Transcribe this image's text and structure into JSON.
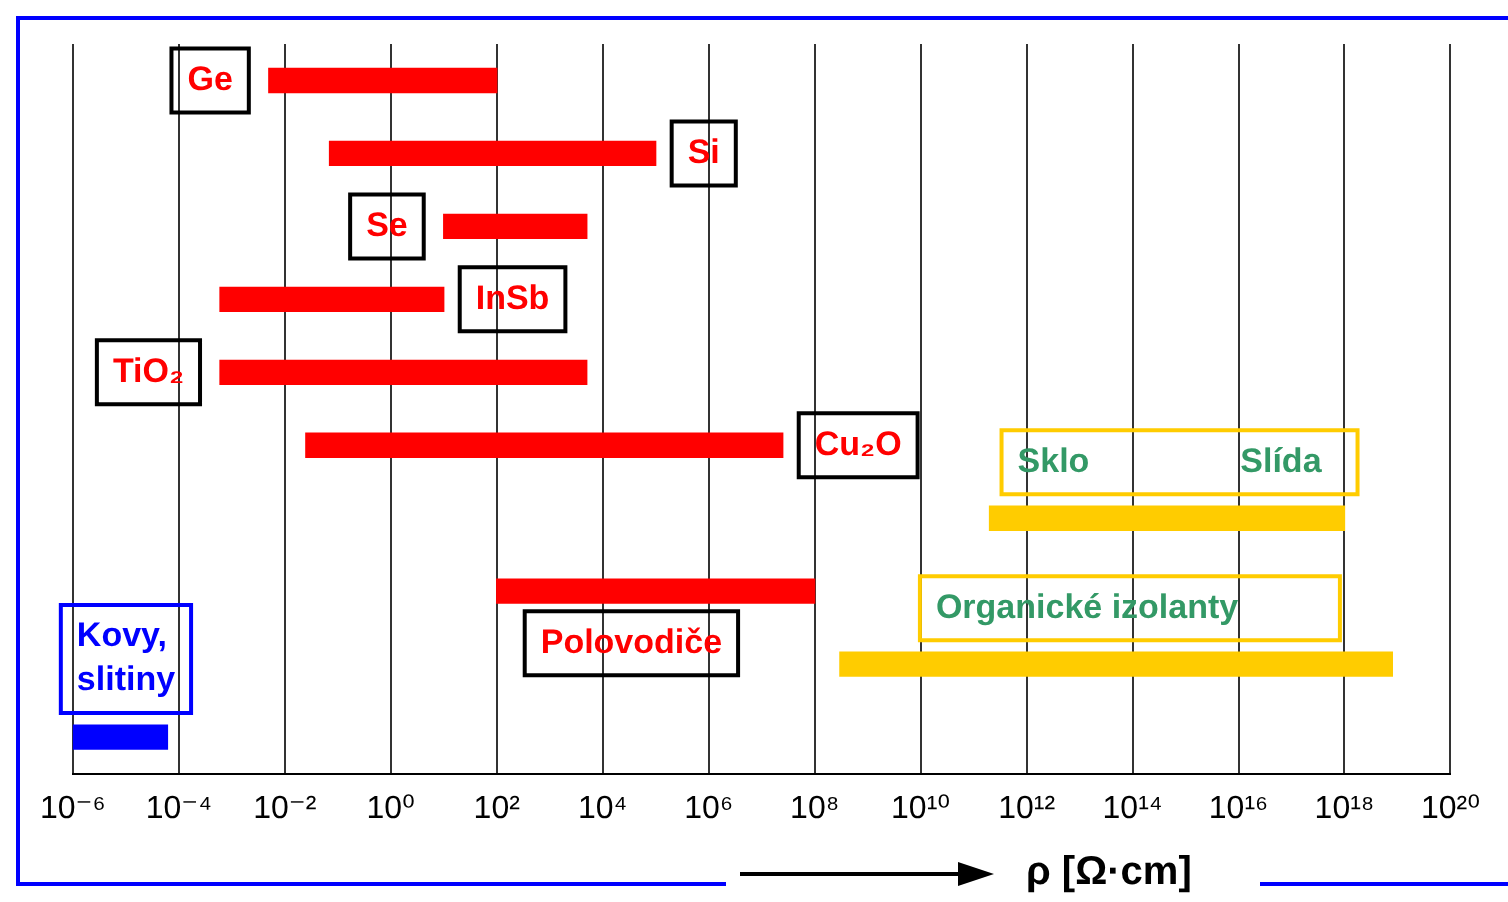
{
  "chart_data": {
    "type": "bar",
    "orientation": "horizontal",
    "log": "x",
    "grid": "x",
    "categories": [
      null,
      null,
      null,
      null,
      null,
      null,
      null,
      null,
      null,
      null
    ],
    "annotations": [
      "Ge",
      "Si",
      "Se",
      "InSb",
      "TiO₂",
      "Cu₂O",
      "Sklo Slída",
      "Polovodiče",
      "Organické izolanty",
      "Kovy, slitiny"
    ],
    "base": [
      0.005,
      0.07,
      10,
      0.0006,
      0.0006,
      0.025,
      200000000000,
      100,
      300000000,
      1e-06
    ],
    "values": [
      100,
      100000,
      5000,
      10,
      5000,
      25000000,
      1000000000000000000,
      100000000,
      8000000000000000000,
      6e-05
    ],
    "colors": [
      "#ff0000",
      "#ff0000",
      "#ff0000",
      "#ff0000",
      "#ff0000",
      "#ff0000",
      "#ffcc00",
      "#ff0000",
      "#ffcc00",
      "#0000ff"
    ],
    "xlim": [
      1e-06,
      100000000000000000000
    ],
    "xticks": [
      {
        "value": 1e-06,
        "label": "10⁻⁶"
      },
      {
        "value": 0.0001,
        "label": "10⁻⁴"
      },
      {
        "value": 0.01,
        "label": "10⁻²"
      },
      {
        "value": 1,
        "label": "10⁰"
      },
      {
        "value": 100,
        "label": "10²"
      },
      {
        "value": 10000,
        "label": "10⁴"
      },
      {
        "value": 1000000,
        "label": "10⁶"
      },
      {
        "value": 100000000,
        "label": "10⁸"
      },
      {
        "value": 10000000000,
        "label": "10¹⁰"
      },
      {
        "value": 1000000000000,
        "label": "10¹²"
      },
      {
        "value": 100000000000000,
        "label": "10¹⁴"
      },
      {
        "value": 10000000000000000,
        "label": "10¹⁶"
      },
      {
        "value": 1000000000000000000,
        "label": "10¹⁸"
      },
      {
        "value": 100000000000000000000,
        "label": "10²⁰"
      }
    ],
    "xlabel": "ρ [Ω·cm]"
  }
}
